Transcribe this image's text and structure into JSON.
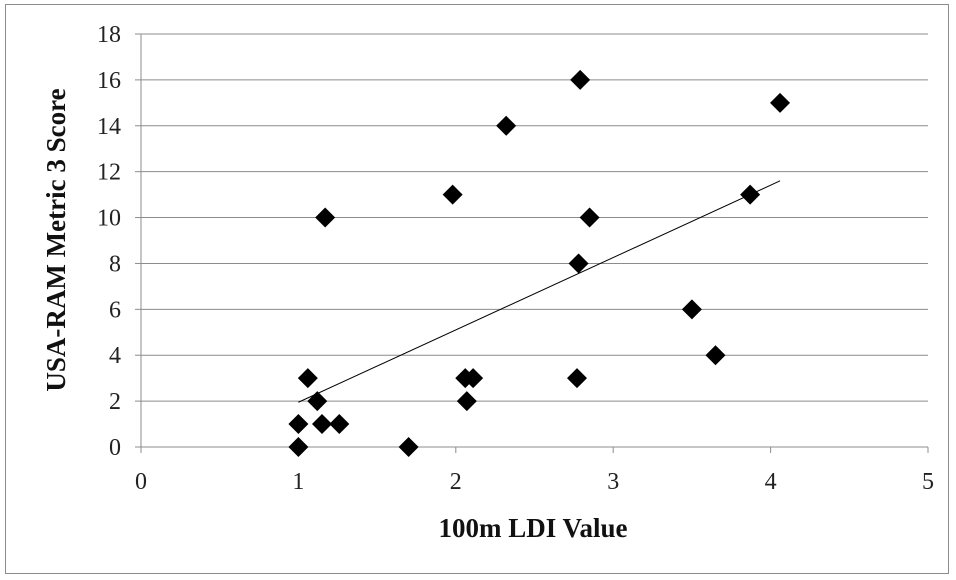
{
  "chart_data": {
    "type": "scatter",
    "title": "",
    "xlabel": "100m LDI Value",
    "ylabel": "USA-RAM Metric 3 Score",
    "xlim": [
      0,
      5
    ],
    "ylim": [
      0,
      18
    ],
    "x_ticks": [
      "0",
      "1",
      "2",
      "3",
      "4",
      "5"
    ],
    "y_ticks": [
      "0",
      "2",
      "4",
      "6",
      "8",
      "10",
      "12",
      "14",
      "16",
      "18"
    ],
    "grid": "horizontal",
    "legend": "none",
    "marker": "diamond",
    "marker_color": "#000000",
    "points": [
      {
        "x": 1.0,
        "y": 0
      },
      {
        "x": 1.0,
        "y": 1
      },
      {
        "x": 1.06,
        "y": 3
      },
      {
        "x": 1.12,
        "y": 2
      },
      {
        "x": 1.15,
        "y": 1
      },
      {
        "x": 1.17,
        "y": 10
      },
      {
        "x": 1.26,
        "y": 1
      },
      {
        "x": 1.7,
        "y": 0
      },
      {
        "x": 1.98,
        "y": 11
      },
      {
        "x": 2.06,
        "y": 3
      },
      {
        "x": 2.07,
        "y": 2
      },
      {
        "x": 2.11,
        "y": 3
      },
      {
        "x": 2.32,
        "y": 14
      },
      {
        "x": 2.77,
        "y": 3
      },
      {
        "x": 2.78,
        "y": 8
      },
      {
        "x": 2.79,
        "y": 16
      },
      {
        "x": 2.85,
        "y": 10
      },
      {
        "x": 3.5,
        "y": 6
      },
      {
        "x": 3.65,
        "y": 4
      },
      {
        "x": 3.87,
        "y": 11
      },
      {
        "x": 4.06,
        "y": 15
      }
    ],
    "trendline": {
      "type": "linear",
      "x": [
        1.0,
        4.06
      ],
      "y": [
        1.95,
        11.6
      ]
    }
  }
}
